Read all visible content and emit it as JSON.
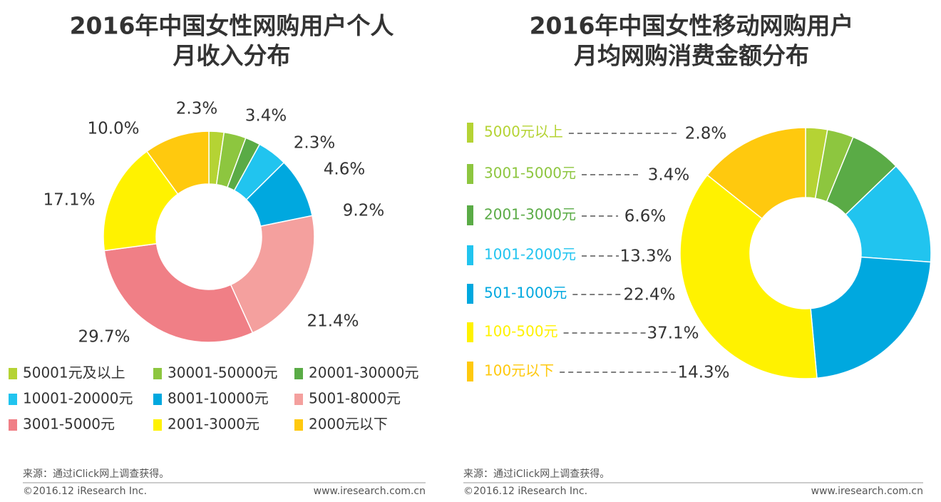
{
  "chart_data": [
    {
      "type": "pie",
      "title": [
        "2016年中国女性网购用户个人",
        "月收入分布"
      ],
      "categories": [
        "50001元及以上",
        "30001-50000元",
        "20001-30000元",
        "10001-20000元",
        "8001-10000元",
        "5001-8000元",
        "3001-5000元",
        "2001-3000元",
        "2000元以下"
      ],
      "values": [
        2.3,
        3.4,
        2.3,
        4.6,
        9.2,
        21.4,
        29.7,
        17.1,
        10.0
      ],
      "value_labels": [
        "2.3%",
        "3.4%",
        "2.3%",
        "4.6%",
        "9.2%",
        "21.4%",
        "29.7%",
        "17.1%",
        "10.0%"
      ],
      "colors": [
        "#b5d334",
        "#8dc63f",
        "#5aab46",
        "#21c4ef",
        "#00a8df",
        "#f4a09e",
        "#f07f86",
        "#fff200",
        "#ffc90e"
      ],
      "source": "来源：通过iClick网上调查获得。",
      "copyright": "©2016.12 iResearch Inc.",
      "website": "www.iresearch.com.cn"
    },
    {
      "type": "pie",
      "title": [
        "2016年中国女性移动网购用户",
        "月均网购消费金额分布"
      ],
      "categories": [
        "5000元以上",
        "3001-5000元",
        "2001-3000元",
        "1001-2000元",
        "501-1000元",
        "100-500元",
        "100元以下"
      ],
      "values": [
        2.8,
        3.4,
        6.6,
        13.3,
        22.4,
        37.1,
        14.3
      ],
      "value_labels": [
        "2.8%",
        "3.4%",
        "6.6%",
        "13.3%",
        "22.4%",
        "37.1%",
        "14.3%"
      ],
      "colors": [
        "#b5d334",
        "#8dc63f",
        "#5aab46",
        "#21c4ef",
        "#00a8df",
        "#fff200",
        "#ffc90e"
      ],
      "source": "来源：通过iClick网上调查获得。",
      "copyright": "©2016.12 iResearch Inc.",
      "website": "www.iresearch.com.cn"
    }
  ]
}
